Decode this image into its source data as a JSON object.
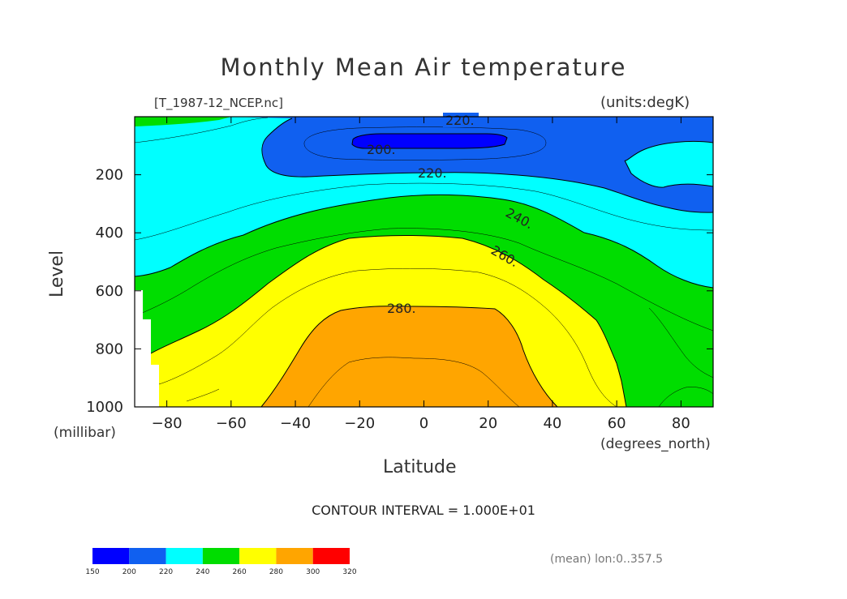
{
  "title": "Monthly Mean Air temperature",
  "file_label": "[T_1987-12_NCEP.nc]",
  "units_label": "(units:degK)",
  "contour_interval": "CONTOUR INTERVAL = 1.000E+01",
  "mean_label": "(mean) lon:0..357.5",
  "chart_data": {
    "type": "contour",
    "title": "Monthly Mean Air temperature",
    "xlabel": "Latitude",
    "ylabel": "Level",
    "x_units": "(degrees_north)",
    "y_units": "(millibar)",
    "xlim": [
      -90,
      90
    ],
    "ylim": [
      1000,
      0
    ],
    "x_ticks": [
      -80,
      -60,
      -40,
      -20,
      0,
      20,
      40,
      60,
      80
    ],
    "y_ticks": [
      200,
      400,
      600,
      800,
      1000
    ],
    "contour_labels": [
      "220.",
      "200.",
      "220.",
      "240.",
      "260.",
      "280."
    ],
    "colorbar": {
      "levels": [
        150,
        200,
        220,
        240,
        260,
        280,
        300,
        320
      ],
      "colors": [
        "#0000ff",
        "#1060f0",
        "#00ffff",
        "#00dd00",
        "#ffff00",
        "#ffa500",
        "#ff0000"
      ]
    }
  }
}
